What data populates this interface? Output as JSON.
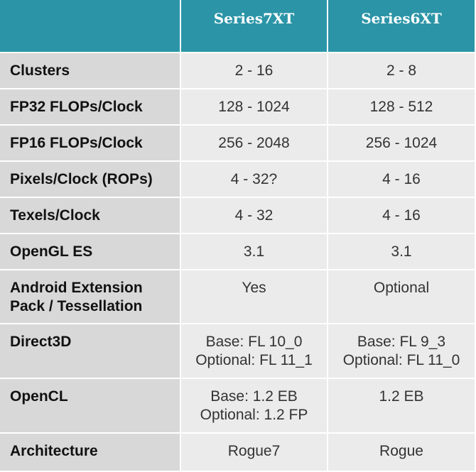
{
  "table": {
    "header": [
      "Series7XT",
      "Series6XT"
    ],
    "rows": [
      {
        "label": "Clusters",
        "values": [
          [
            "2 - 16"
          ],
          [
            "2 - 8"
          ]
        ]
      },
      {
        "label": "FP32 FLOPs/Clock",
        "values": [
          [
            "128 - 1024"
          ],
          [
            "128 - 512"
          ]
        ]
      },
      {
        "label": "FP16 FLOPs/Clock",
        "values": [
          [
            "256 - 2048"
          ],
          [
            "256 - 1024"
          ]
        ]
      },
      {
        "label": "Pixels/Clock (ROPs)",
        "values": [
          [
            "4 - 32?"
          ],
          [
            "4 - 16"
          ]
        ]
      },
      {
        "label": "Texels/Clock",
        "values": [
          [
            "4 - 32"
          ],
          [
            "4 - 16"
          ]
        ]
      },
      {
        "label": "OpenGL ES",
        "values": [
          [
            "3.1"
          ],
          [
            "3.1"
          ]
        ]
      },
      {
        "label": "Android Extension Pack / Tessellation",
        "values": [
          [
            "Yes"
          ],
          [
            "Optional"
          ]
        ]
      },
      {
        "label": "Direct3D",
        "values": [
          [
            "Base: FL 10_0",
            "Optional: FL 11_1"
          ],
          [
            "Base: FL 9_3",
            "Optional: FL 11_0"
          ]
        ]
      },
      {
        "label": "OpenCL",
        "values": [
          [
            "Base: 1.2 EB",
            "Optional: 1.2 FP"
          ],
          [
            "1.2 EB"
          ]
        ]
      },
      {
        "label": "Architecture",
        "values": [
          [
            "Rogue7"
          ],
          [
            "Rogue"
          ]
        ]
      }
    ]
  }
}
